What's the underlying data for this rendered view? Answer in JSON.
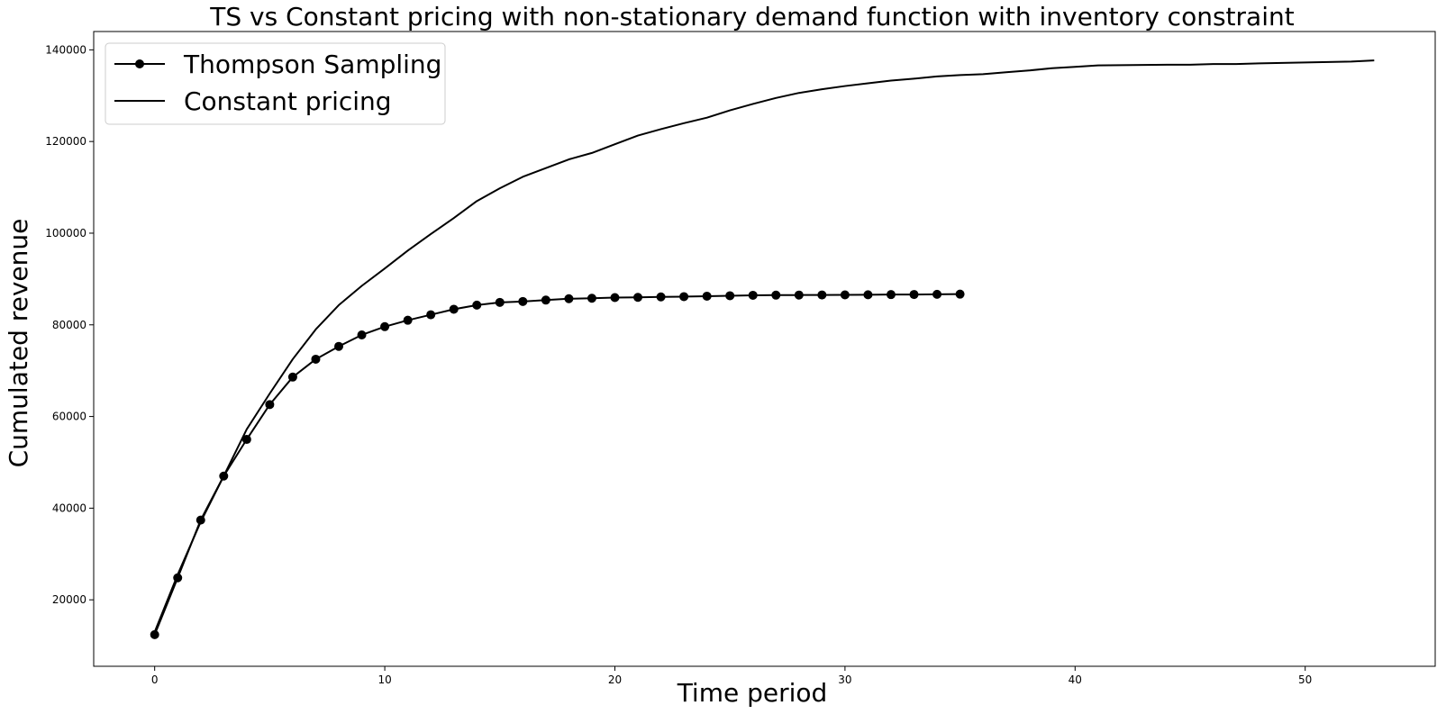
{
  "chart_data": {
    "type": "line",
    "title": "TS vs Constant pricing with non-stationary demand function with inventory constraint",
    "xlabel": "Time period",
    "ylabel": "Cumulated revenue",
    "xlim": [
      -2.65,
      55.65
    ],
    "ylim": [
      5500,
      144000
    ],
    "xticks": [
      0,
      10,
      20,
      30,
      40,
      50
    ],
    "yticks": [
      20000,
      40000,
      60000,
      80000,
      100000,
      120000,
      140000
    ],
    "grid": false,
    "legend_position": "upper left",
    "series": [
      {
        "name": "Thompson Sampling",
        "marker": "circle",
        "color": "#000000",
        "x": [
          0,
          1,
          2,
          3,
          4,
          5,
          6,
          7,
          8,
          9,
          10,
          11,
          12,
          13,
          14,
          15,
          16,
          17,
          18,
          19,
          20,
          21,
          22,
          23,
          24,
          25,
          26,
          27,
          28,
          29,
          30,
          31,
          32,
          33,
          34,
          35
        ],
        "y": [
          12400,
          24800,
          37400,
          47000,
          55000,
          62600,
          68600,
          72500,
          75300,
          77800,
          79600,
          81000,
          82200,
          83400,
          84300,
          84900,
          85100,
          85400,
          85700,
          85800,
          85950,
          86000,
          86100,
          86150,
          86250,
          86350,
          86450,
          86480,
          86500,
          86520,
          86540,
          86560,
          86600,
          86620,
          86660,
          86700
        ]
      },
      {
        "name": "Constant pricing",
        "marker": "none",
        "color": "#000000",
        "x": [
          0,
          1,
          2,
          3,
          4,
          5,
          6,
          7,
          8,
          9,
          10,
          11,
          12,
          13,
          14,
          15,
          16,
          17,
          18,
          19,
          20,
          21,
          22,
          23,
          24,
          25,
          26,
          27,
          28,
          29,
          30,
          31,
          32,
          33,
          34,
          35,
          36,
          37,
          38,
          39,
          40,
          41,
          42,
          43,
          44,
          45,
          46,
          47,
          48,
          49,
          50,
          51,
          52,
          53
        ],
        "y": [
          13000,
          25500,
          37000,
          47000,
          57200,
          65000,
          72500,
          79000,
          84300,
          88500,
          92300,
          96200,
          99800,
          103300,
          107000,
          109800,
          112300,
          114200,
          116100,
          117500,
          119400,
          121300,
          122700,
          124000,
          125200,
          126800,
          128200,
          129500,
          130600,
          131400,
          132100,
          132700,
          133300,
          133700,
          134200,
          134500,
          134700,
          135100,
          135500,
          136000,
          136300,
          136600,
          136650,
          136700,
          136750,
          136750,
          136900,
          136900,
          137050,
          137150,
          137250,
          137350,
          137450,
          137700
        ]
      }
    ]
  }
}
